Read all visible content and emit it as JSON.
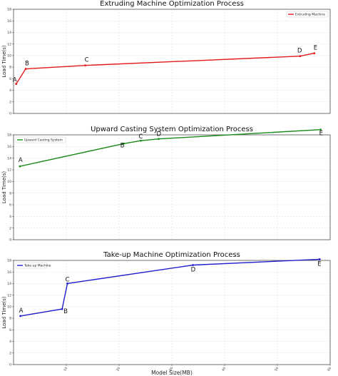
{
  "chart_data": [
    {
      "type": "line",
      "title": "Extruding Machine Optimization Process",
      "ylabel": "Load Time(s)",
      "xlabel": "",
      "color": "#e41a1c",
      "legend_position": "top-right",
      "xlim": [
        0,
        60
      ],
      "ylim": [
        0,
        18
      ],
      "yticks": [
        0,
        2,
        4,
        6,
        8,
        10,
        12,
        14,
        16,
        18
      ],
      "grid": true,
      "series": [
        {
          "name": "Extruding Machine",
          "x": [
            0.5,
            2.3,
            13.6,
            54.3,
            57.0
          ],
          "y": [
            5.1,
            7.7,
            8.3,
            9.9,
            10.4
          ],
          "labels": [
            "A",
            "B",
            "C",
            "D",
            "E"
          ]
        }
      ]
    },
    {
      "type": "line",
      "title": "Upward Casting System Optimization Process",
      "ylabel": "Load Time(s)",
      "xlabel": "",
      "color": "#1a8a1a",
      "legend_position": "top-left",
      "xlim": [
        0,
        60
      ],
      "ylim": [
        0,
        18
      ],
      "yticks": [
        0,
        2,
        4,
        6,
        8,
        10,
        12,
        14,
        16,
        18
      ],
      "grid": true,
      "series": [
        {
          "name": "Upward Casting System",
          "x": [
            1.2,
            20.9,
            24.1,
            27.5,
            58.2
          ],
          "y": [
            12.6,
            16.5,
            17.0,
            17.3,
            18.9
          ],
          "labels": [
            "A",
            "B",
            "C",
            "D",
            "E"
          ]
        }
      ]
    },
    {
      "type": "line",
      "title": "Take-up Machine Optimization Process",
      "ylabel": "Load Time(s)",
      "xlabel": "Model Size(MB)",
      "color": "#1f1fcc",
      "legend_position": "top-left",
      "xlim": [
        0,
        60
      ],
      "ylim": [
        0,
        18
      ],
      "xticks": [
        10,
        20,
        30,
        40,
        50,
        60
      ],
      "yticks": [
        0,
        2,
        4,
        6,
        8,
        10,
        12,
        14,
        16,
        18
      ],
      "grid": true,
      "series": [
        {
          "name": "Take-up Machine",
          "x": [
            1.3,
            9.2,
            10.2,
            34.0,
            58.0
          ],
          "y": [
            8.4,
            9.6,
            14.0,
            17.2,
            18.2
          ],
          "labels": [
            "A",
            "B",
            "C",
            "D",
            "E"
          ]
        }
      ]
    }
  ]
}
